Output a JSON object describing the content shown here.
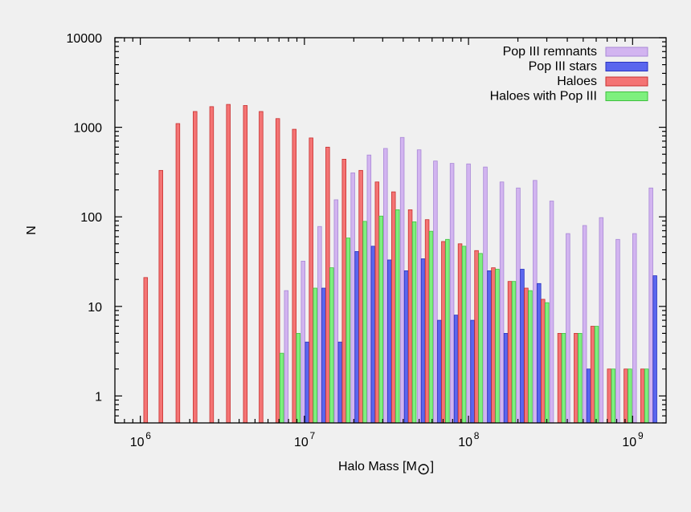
{
  "chart_data": {
    "type": "bar",
    "xlabel": "Halo Mass [M",
    "xlabel_symbol": "⊙",
    "xlabel_close": "]",
    "ylabel": "N",
    "x_scale": "log",
    "y_scale": "log",
    "xlim": [
      700000,
      1600000000
    ],
    "ylim": [
      0.5,
      10000
    ],
    "x_ticks": [
      {
        "value": 1000000,
        "base": "10",
        "exp": "6"
      },
      {
        "value": 10000000,
        "base": "10",
        "exp": "7"
      },
      {
        "value": 100000000,
        "base": "10",
        "exp": "8"
      },
      {
        "value": 1000000000,
        "base": "10",
        "exp": "9"
      }
    ],
    "y_ticks": [
      {
        "value": 1,
        "label": "1"
      },
      {
        "value": 10,
        "label": "10"
      },
      {
        "value": 100,
        "label": "100"
      },
      {
        "value": 1000,
        "label": "1000"
      },
      {
        "value": 10000,
        "label": "10000"
      }
    ],
    "legend_position": "top-right",
    "bins": [
      1050000,
      1300000,
      1650000,
      2100000,
      2650000,
      3350000,
      4250000,
      5300000,
      6700000,
      8450000,
      10700000,
      13500000,
      17000000,
      21500000,
      27000000,
      34000000,
      43000000,
      54500000,
      68500000,
      86500000,
      109000000,
      138000000,
      174000000,
      219000000,
      277000000,
      350000000,
      440000000,
      556000000,
      702000000,
      886000000,
      1120000000,
      1410000000
    ],
    "series": [
      {
        "name": "Pop III remnants",
        "color": "#d2b4f0",
        "stroke": "#a988d6",
        "values": [
          null,
          null,
          null,
          null,
          null,
          null,
          null,
          null,
          null,
          15,
          32,
          78,
          155,
          310,
          490,
          580,
          770,
          560,
          420,
          395,
          390,
          360,
          245,
          210,
          255,
          150,
          65,
          80,
          98,
          56,
          65,
          210
        ]
      },
      {
        "name": "Pop III stars",
        "color": "#5a66ee",
        "stroke": "#2a34c0",
        "values": [
          null,
          null,
          null,
          null,
          null,
          null,
          null,
          null,
          null,
          null,
          4,
          16,
          4,
          41,
          47,
          33,
          25,
          34,
          7,
          8,
          7,
          25,
          5,
          26,
          18,
          null,
          null,
          2,
          null,
          null,
          null,
          22
        ]
      },
      {
        "name": "Haloes",
        "color": "#f47474",
        "stroke": "#c83030",
        "values": [
          21,
          330,
          1100,
          1500,
          1700,
          1800,
          1750,
          1500,
          1250,
          950,
          760,
          600,
          440,
          330,
          245,
          190,
          120,
          93,
          53,
          50,
          42,
          27,
          19,
          16,
          12,
          5,
          5,
          6,
          2,
          2,
          2,
          null
        ]
      },
      {
        "name": "Haloes with Pop III",
        "color": "#7ef07e",
        "stroke": "#40c040",
        "values": [
          null,
          null,
          null,
          null,
          null,
          null,
          null,
          null,
          3,
          5,
          16,
          27,
          58,
          89,
          102,
          120,
          88,
          69,
          56,
          47,
          39,
          26,
          19,
          15,
          11,
          5,
          5,
          6,
          2,
          2,
          2,
          null
        ]
      }
    ]
  }
}
